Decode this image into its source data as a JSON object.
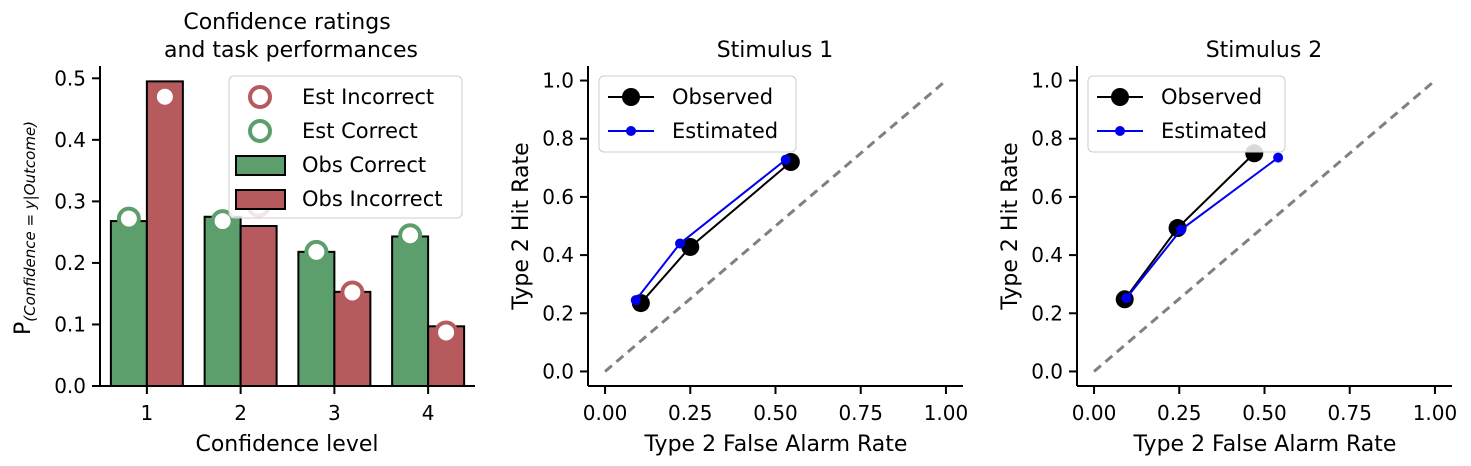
{
  "colors": {
    "green": "#5c9e6c",
    "red": "#b65a5e",
    "observed": "#000000",
    "estimated": "#0000ee",
    "chance": "#808080"
  },
  "chart_data": [
    {
      "type": "bar",
      "title_line1": "Confidence ratings",
      "title_line2": "and task performances",
      "xlabel": "Confidence level",
      "ylabel_main": "P",
      "ylabel_sub": "(Confidence = y|Outcome)",
      "categories": [
        "1",
        "2",
        "3",
        "4"
      ],
      "ylim": [
        0,
        0.52
      ],
      "yticks": [
        "0.0",
        "0.1",
        "0.2",
        "0.3",
        "0.4",
        "0.5"
      ],
      "ytick_values": [
        0,
        0.1,
        0.2,
        0.3,
        0.4,
        0.5
      ],
      "legend_position": "top-right",
      "series": [
        {
          "name": "Obs Correct",
          "kind": "bar",
          "color": "green",
          "values": [
            0.268,
            0.275,
            0.218,
            0.243
          ]
        },
        {
          "name": "Obs Incorrect",
          "kind": "bar",
          "color": "red",
          "values": [
            0.495,
            0.26,
            0.153,
            0.097
          ]
        },
        {
          "name": "Est Incorrect",
          "kind": "marker",
          "color": "red",
          "values": [
            0.47,
            0.293,
            0.152,
            0.087
          ]
        },
        {
          "name": "Est Correct",
          "kind": "marker",
          "color": "green",
          "values": [
            0.272,
            0.268,
            0.218,
            0.245
          ]
        }
      ],
      "legend_order": [
        "Est Incorrect",
        "Est Correct",
        "Obs Correct",
        "Obs Incorrect"
      ]
    },
    {
      "type": "line",
      "title": "Stimulus 1",
      "xlabel": "Type 2 False Alarm Rate",
      "ylabel": "Type 2 Hit Rate",
      "xlim": [
        -0.05,
        1.05
      ],
      "ylim": [
        -0.05,
        1.05
      ],
      "xticks": [
        "0.00",
        "0.25",
        "0.50",
        "0.75",
        "1.00"
      ],
      "xtick_values": [
        0,
        0.25,
        0.5,
        0.75,
        1.0
      ],
      "yticks": [
        "0.0",
        "0.2",
        "0.4",
        "0.6",
        "0.8",
        "1.0"
      ],
      "ytick_values": [
        0,
        0.2,
        0.4,
        0.6,
        0.8,
        1.0
      ],
      "legend_position": "top-left",
      "series": [
        {
          "name": "Observed",
          "color": "observed",
          "x": [
            0.105,
            0.25,
            0.545
          ],
          "y": [
            0.235,
            0.428,
            0.72
          ]
        },
        {
          "name": "Estimated",
          "color": "estimated",
          "x": [
            0.09,
            0.22,
            0.53
          ],
          "y": [
            0.245,
            0.44,
            0.728
          ]
        }
      ]
    },
    {
      "type": "line",
      "title": "Stimulus 2",
      "xlabel": "Type 2 False Alarm Rate",
      "ylabel": "Type 2 Hit Rate",
      "xlim": [
        -0.05,
        1.05
      ],
      "ylim": [
        -0.05,
        1.05
      ],
      "xticks": [
        "0.00",
        "0.25",
        "0.50",
        "0.75",
        "1.00"
      ],
      "xtick_values": [
        0,
        0.25,
        0.5,
        0.75,
        1.0
      ],
      "yticks": [
        "0.0",
        "0.2",
        "0.4",
        "0.6",
        "0.8",
        "1.0"
      ],
      "ytick_values": [
        0,
        0.2,
        0.4,
        0.6,
        0.8,
        1.0
      ],
      "legend_position": "top-left",
      "series": [
        {
          "name": "Observed",
          "color": "observed",
          "x": [
            0.09,
            0.245,
            0.47
          ],
          "y": [
            0.248,
            0.493,
            0.75
          ]
        },
        {
          "name": "Estimated",
          "color": "estimated",
          "x": [
            0.095,
            0.255,
            0.54
          ],
          "y": [
            0.252,
            0.487,
            0.735
          ]
        }
      ]
    }
  ]
}
